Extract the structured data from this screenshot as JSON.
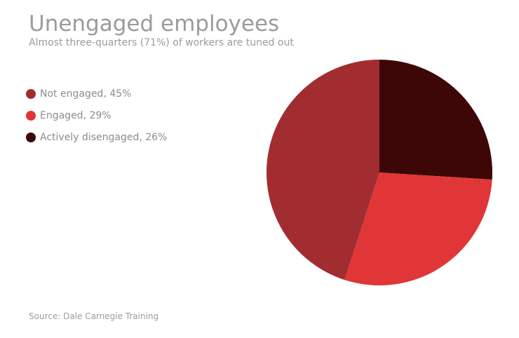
{
  "chart_data": {
    "type": "pie",
    "title": "Unengaged employees",
    "subtitle": "Almost three-quarters (71%) of workers are tuned out",
    "source": "Source: Dale Carnegie Training",
    "legend_position": "top-left",
    "slices": [
      {
        "name": "Not engaged",
        "value": 45,
        "label": "Not engaged, 45%",
        "color": "#a12d30"
      },
      {
        "name": "Engaged",
        "value": 29,
        "label": "Engaged, 29%",
        "color": "#e03637"
      },
      {
        "name": "Actively disengaged",
        "value": 26,
        "label": "Actively disengaged, 26%",
        "color": "#3e0707"
      }
    ]
  }
}
